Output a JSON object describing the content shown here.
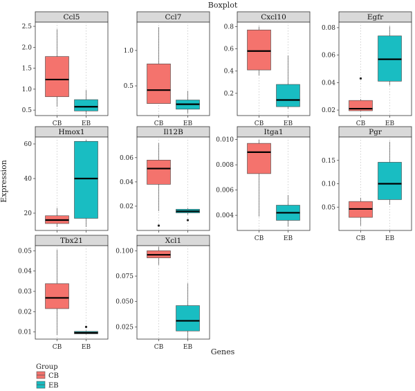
{
  "title": "Boxplot",
  "xlabel": "Genes",
  "ylabel": "Expression",
  "legend": {
    "title": "Group",
    "items": [
      {
        "label": "CB",
        "color": "#f4736d"
      },
      {
        "label": "EB",
        "color": "#19bdc2"
      }
    ]
  },
  "colors": {
    "CB": "#f4736d",
    "EB": "#19bdc2",
    "strip": "#d9d9d9",
    "grid": "#bdbdbd",
    "median": "#000000"
  },
  "chart_data": [
    {
      "type": "box",
      "gene": "Ccl5",
      "categories": [
        "CB",
        "EB"
      ],
      "ylim": [
        0.37,
        2.6
      ],
      "yticks": [
        0.5,
        1.0,
        1.5,
        2.0,
        2.5
      ],
      "ytick_labels": [
        "0.5",
        "1.0",
        "1.5",
        "2.0",
        "2.5"
      ],
      "series": [
        {
          "name": "CB",
          "min": 0.58,
          "q1": 0.82,
          "median": 1.23,
          "q3": 1.78,
          "max": 2.43,
          "outliers": []
        },
        {
          "name": "EB",
          "min": 0.4,
          "q1": 0.48,
          "median": 0.58,
          "q3": 0.75,
          "max": 0.98,
          "outliers": []
        }
      ]
    },
    {
      "type": "box",
      "gene": "Ccl7",
      "categories": [
        "CB",
        "EB"
      ],
      "ylim": [
        0.08,
        1.4
      ],
      "yticks": [
        0.5,
        1.0
      ],
      "ytick_labels": [
        "0.5",
        "1.0"
      ],
      "series": [
        {
          "name": "CB",
          "min": 0.25,
          "q1": 0.25,
          "median": 0.44,
          "q3": 0.81,
          "max": 1.33,
          "outliers": []
        },
        {
          "name": "EB",
          "min": 0.11,
          "q1": 0.17,
          "median": 0.24,
          "q3": 0.3,
          "max": 0.43,
          "outliers": []
        }
      ]
    },
    {
      "type": "box",
      "gene": "Cxcl10",
      "categories": [
        "CB",
        "EB"
      ],
      "ylim": [
        0.0,
        0.84
      ],
      "yticks": [
        0.2,
        0.4,
        0.6,
        0.8
      ],
      "ytick_labels": [
        "0.2",
        "0.4",
        "0.6",
        "0.8"
      ],
      "series": [
        {
          "name": "CB",
          "min": 0.36,
          "q1": 0.41,
          "median": 0.58,
          "q3": 0.77,
          "max": 0.8,
          "outliers": []
        },
        {
          "name": "EB",
          "min": 0.06,
          "q1": 0.08,
          "median": 0.14,
          "q3": 0.28,
          "max": 0.54,
          "outliers": []
        }
      ]
    },
    {
      "type": "box",
      "gene": "Egfr",
      "categories": [
        "CB",
        "EB"
      ],
      "ylim": [
        0.016,
        0.084
      ],
      "yticks": [
        0.02,
        0.04,
        0.06,
        0.08
      ],
      "ytick_labels": [
        "0.02",
        "0.04",
        "0.06",
        "0.08"
      ],
      "series": [
        {
          "name": "CB",
          "min": 0.019,
          "q1": 0.0195,
          "median": 0.021,
          "q3": 0.027,
          "max": 0.028,
          "outliers": [
            0.043
          ]
        },
        {
          "name": "EB",
          "min": 0.038,
          "q1": 0.041,
          "median": 0.057,
          "q3": 0.074,
          "max": 0.081,
          "outliers": []
        }
      ]
    },
    {
      "type": "box",
      "gene": "Hmox1",
      "categories": [
        "CB",
        "EB"
      ],
      "ylim": [
        10,
        64
      ],
      "yticks": [
        20,
        40,
        60
      ],
      "ytick_labels": [
        "20",
        "40",
        "60"
      ],
      "series": [
        {
          "name": "CB",
          "min": 12,
          "q1": 14,
          "median": 16,
          "q3": 18.5,
          "max": 23,
          "outliers": []
        },
        {
          "name": "EB",
          "min": 12,
          "q1": 17,
          "median": 40,
          "q3": 61.5,
          "max": 62.5,
          "outliers": []
        }
      ]
    },
    {
      "type": "box",
      "gene": "Il12B",
      "categories": [
        "CB",
        "EB"
      ],
      "ylim": [
        0.0,
        0.077
      ],
      "yticks": [
        0.02,
        0.04,
        0.06
      ],
      "ytick_labels": [
        "0.02",
        "0.04",
        "0.06"
      ],
      "series": [
        {
          "name": "CB",
          "min": 0.016,
          "q1": 0.038,
          "median": 0.051,
          "q3": 0.058,
          "max": 0.072,
          "outliers": [
            0.004
          ]
        },
        {
          "name": "EB",
          "min": 0.013,
          "q1": 0.0145,
          "median": 0.0158,
          "q3": 0.0175,
          "max": 0.0185,
          "outliers": [
            0.0085
          ]
        }
      ]
    },
    {
      "type": "box",
      "gene": "Itga1",
      "categories": [
        "CB",
        "EB"
      ],
      "ylim": [
        0.0028,
        0.0102
      ],
      "yticks": [
        0.004,
        0.006,
        0.008,
        0.01
      ],
      "ytick_labels": [
        "0.004",
        "0.006",
        "0.008",
        "0.010"
      ],
      "series": [
        {
          "name": "CB",
          "min": 0.0039,
          "q1": 0.0073,
          "median": 0.009,
          "q3": 0.0097,
          "max": 0.01,
          "outliers": []
        },
        {
          "name": "EB",
          "min": 0.0031,
          "q1": 0.0036,
          "median": 0.0042,
          "q3": 0.0048,
          "max": 0.0056,
          "outliers": []
        }
      ]
    },
    {
      "type": "box",
      "gene": "Pgr",
      "categories": [
        "CB",
        "EB"
      ],
      "ylim": [
        0.0,
        0.2
      ],
      "yticks": [
        0.05,
        0.1,
        0.15
      ],
      "ytick_labels": [
        "0.05",
        "0.10",
        "0.15"
      ],
      "series": [
        {
          "name": "CB",
          "min": 0.01,
          "q1": 0.028,
          "median": 0.046,
          "q3": 0.062,
          "max": 0.07,
          "outliers": []
        },
        {
          "name": "EB",
          "min": 0.055,
          "q1": 0.066,
          "median": 0.1,
          "q3": 0.146,
          "max": 0.19,
          "outliers": []
        }
      ]
    },
    {
      "type": "box",
      "gene": "Tbx21",
      "categories": [
        "CB",
        "EB"
      ],
      "ylim": [
        0.0065,
        0.0525
      ],
      "yticks": [
        0.01,
        0.02,
        0.03,
        0.04,
        0.05
      ],
      "ytick_labels": [
        "0.01",
        "0.02",
        "0.03",
        "0.04",
        "0.05"
      ],
      "series": [
        {
          "name": "CB",
          "min": 0.0085,
          "q1": 0.0215,
          "median": 0.0268,
          "q3": 0.0338,
          "max": 0.0505,
          "outliers": []
        },
        {
          "name": "EB",
          "min": 0.0088,
          "q1": 0.0091,
          "median": 0.0096,
          "q3": 0.0103,
          "max": 0.0108,
          "outliers": [
            0.0125
          ]
        }
      ]
    },
    {
      "type": "box",
      "gene": "Xcl1",
      "categories": [
        "CB",
        "EB"
      ],
      "ylim": [
        0.013,
        0.105
      ],
      "yticks": [
        0.025,
        0.05,
        0.075,
        0.1
      ],
      "ytick_labels": [
        "0.025",
        "0.050",
        "0.075",
        "0.100"
      ],
      "series": [
        {
          "name": "CB",
          "min": 0.086,
          "q1": 0.093,
          "median": 0.096,
          "q3": 0.1,
          "max": 0.104,
          "outliers": []
        },
        {
          "name": "EB",
          "min": 0.013,
          "q1": 0.021,
          "median": 0.031,
          "q3": 0.046,
          "max": 0.068,
          "outliers": []
        }
      ]
    }
  ]
}
